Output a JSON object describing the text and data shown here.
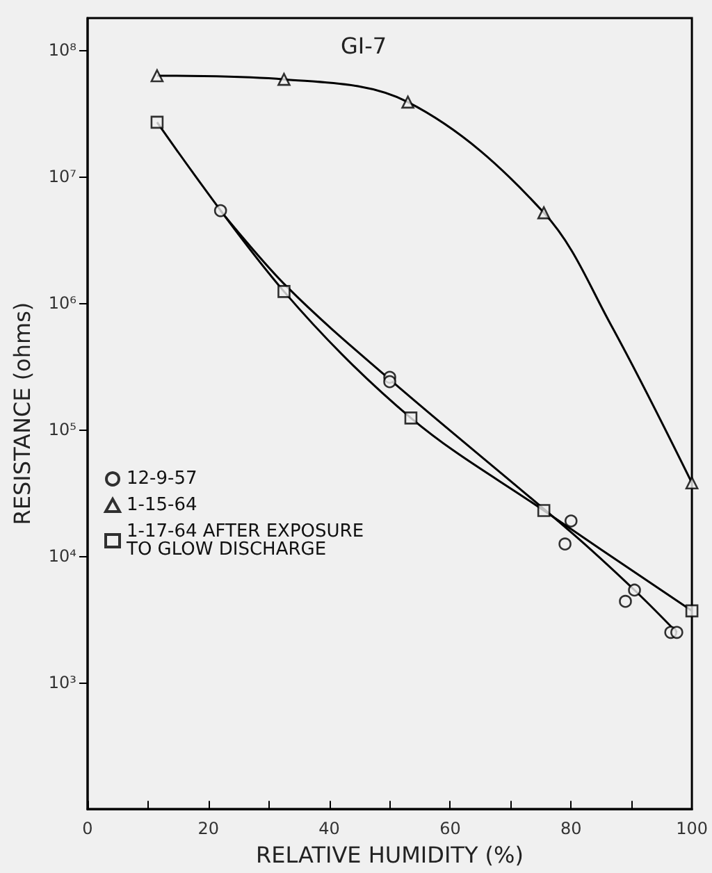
{
  "chart_data": {
    "type": "scatter",
    "title": "GI-7",
    "xlabel": "RELATIVE HUMIDITY (%)",
    "ylabel": "RESISTANCE (ohms)",
    "log": "y",
    "grid": false,
    "legend": "left",
    "xlim": [
      0,
      100
    ],
    "xticks": [
      0,
      {
        "value": 10,
        "label": null
      },
      20,
      {
        "value": 30,
        "label": null
      },
      40,
      {
        "value": 50,
        "label": null
      },
      60,
      {
        "value": 70,
        "label": null
      },
      80,
      {
        "value": 90,
        "label": null
      },
      100
    ],
    "ylim": [
      100,
      180000000
    ],
    "yticks": [
      {
        "value": 1000,
        "label": "10³"
      },
      {
        "value": 10000,
        "label": "10⁴"
      },
      {
        "value": 100000,
        "label": "10⁵"
      },
      {
        "value": 1000000,
        "label": "10⁶"
      },
      {
        "value": 10000000,
        "label": "10⁷"
      },
      {
        "value": 100000000,
        "label": "10⁸"
      }
    ],
    "series": [
      {
        "name": "12-9-57",
        "marker": "circle",
        "color": "#000000",
        "x": [
          22,
          50,
          50,
          80,
          79,
          90.5,
          89,
          96.5,
          97.5
        ],
        "values": [
          5400000,
          260000,
          240000,
          19000,
          12500,
          5400,
          4400,
          2500,
          2500
        ]
      },
      {
        "name": "1-15-64",
        "marker": "triangle",
        "color": "#000000",
        "x": [
          11.5,
          32.5,
          53,
          75.5,
          100
        ],
        "values": [
          63000000,
          59000000,
          39000000,
          5200000,
          38000
        ]
      },
      {
        "name": "1-17-64 AFTER EXPOSURE TO GLOW DISCHARGE",
        "marker": "square",
        "color": "#000000",
        "x": [
          11.5,
          32.5,
          53.5,
          75.5,
          100
        ],
        "values": [
          27000000,
          1240000,
          124000,
          23000,
          3700
        ]
      },
      {
        "type": "line",
        "marker": "none",
        "color": "#000000",
        "x": [
          22,
          33,
          50,
          80,
          90.5,
          97.5
        ],
        "values": [
          5400000,
          1350000,
          250000,
          15500,
          5400,
          2500
        ]
      },
      {
        "type": "line",
        "marker": "none",
        "color": "#000000",
        "x": [
          11.5,
          32.5,
          53,
          75.5,
          86.5,
          100
        ],
        "values": [
          63000000,
          59000000,
          39000000,
          5200000,
          690000,
          38000
        ]
      },
      {
        "type": "line",
        "marker": "none",
        "color": "#000000",
        "x": [
          11.5,
          32.5,
          53.5,
          75.5,
          100
        ],
        "values": [
          27000000,
          1240000,
          124000,
          23000,
          3700
        ]
      }
    ]
  }
}
